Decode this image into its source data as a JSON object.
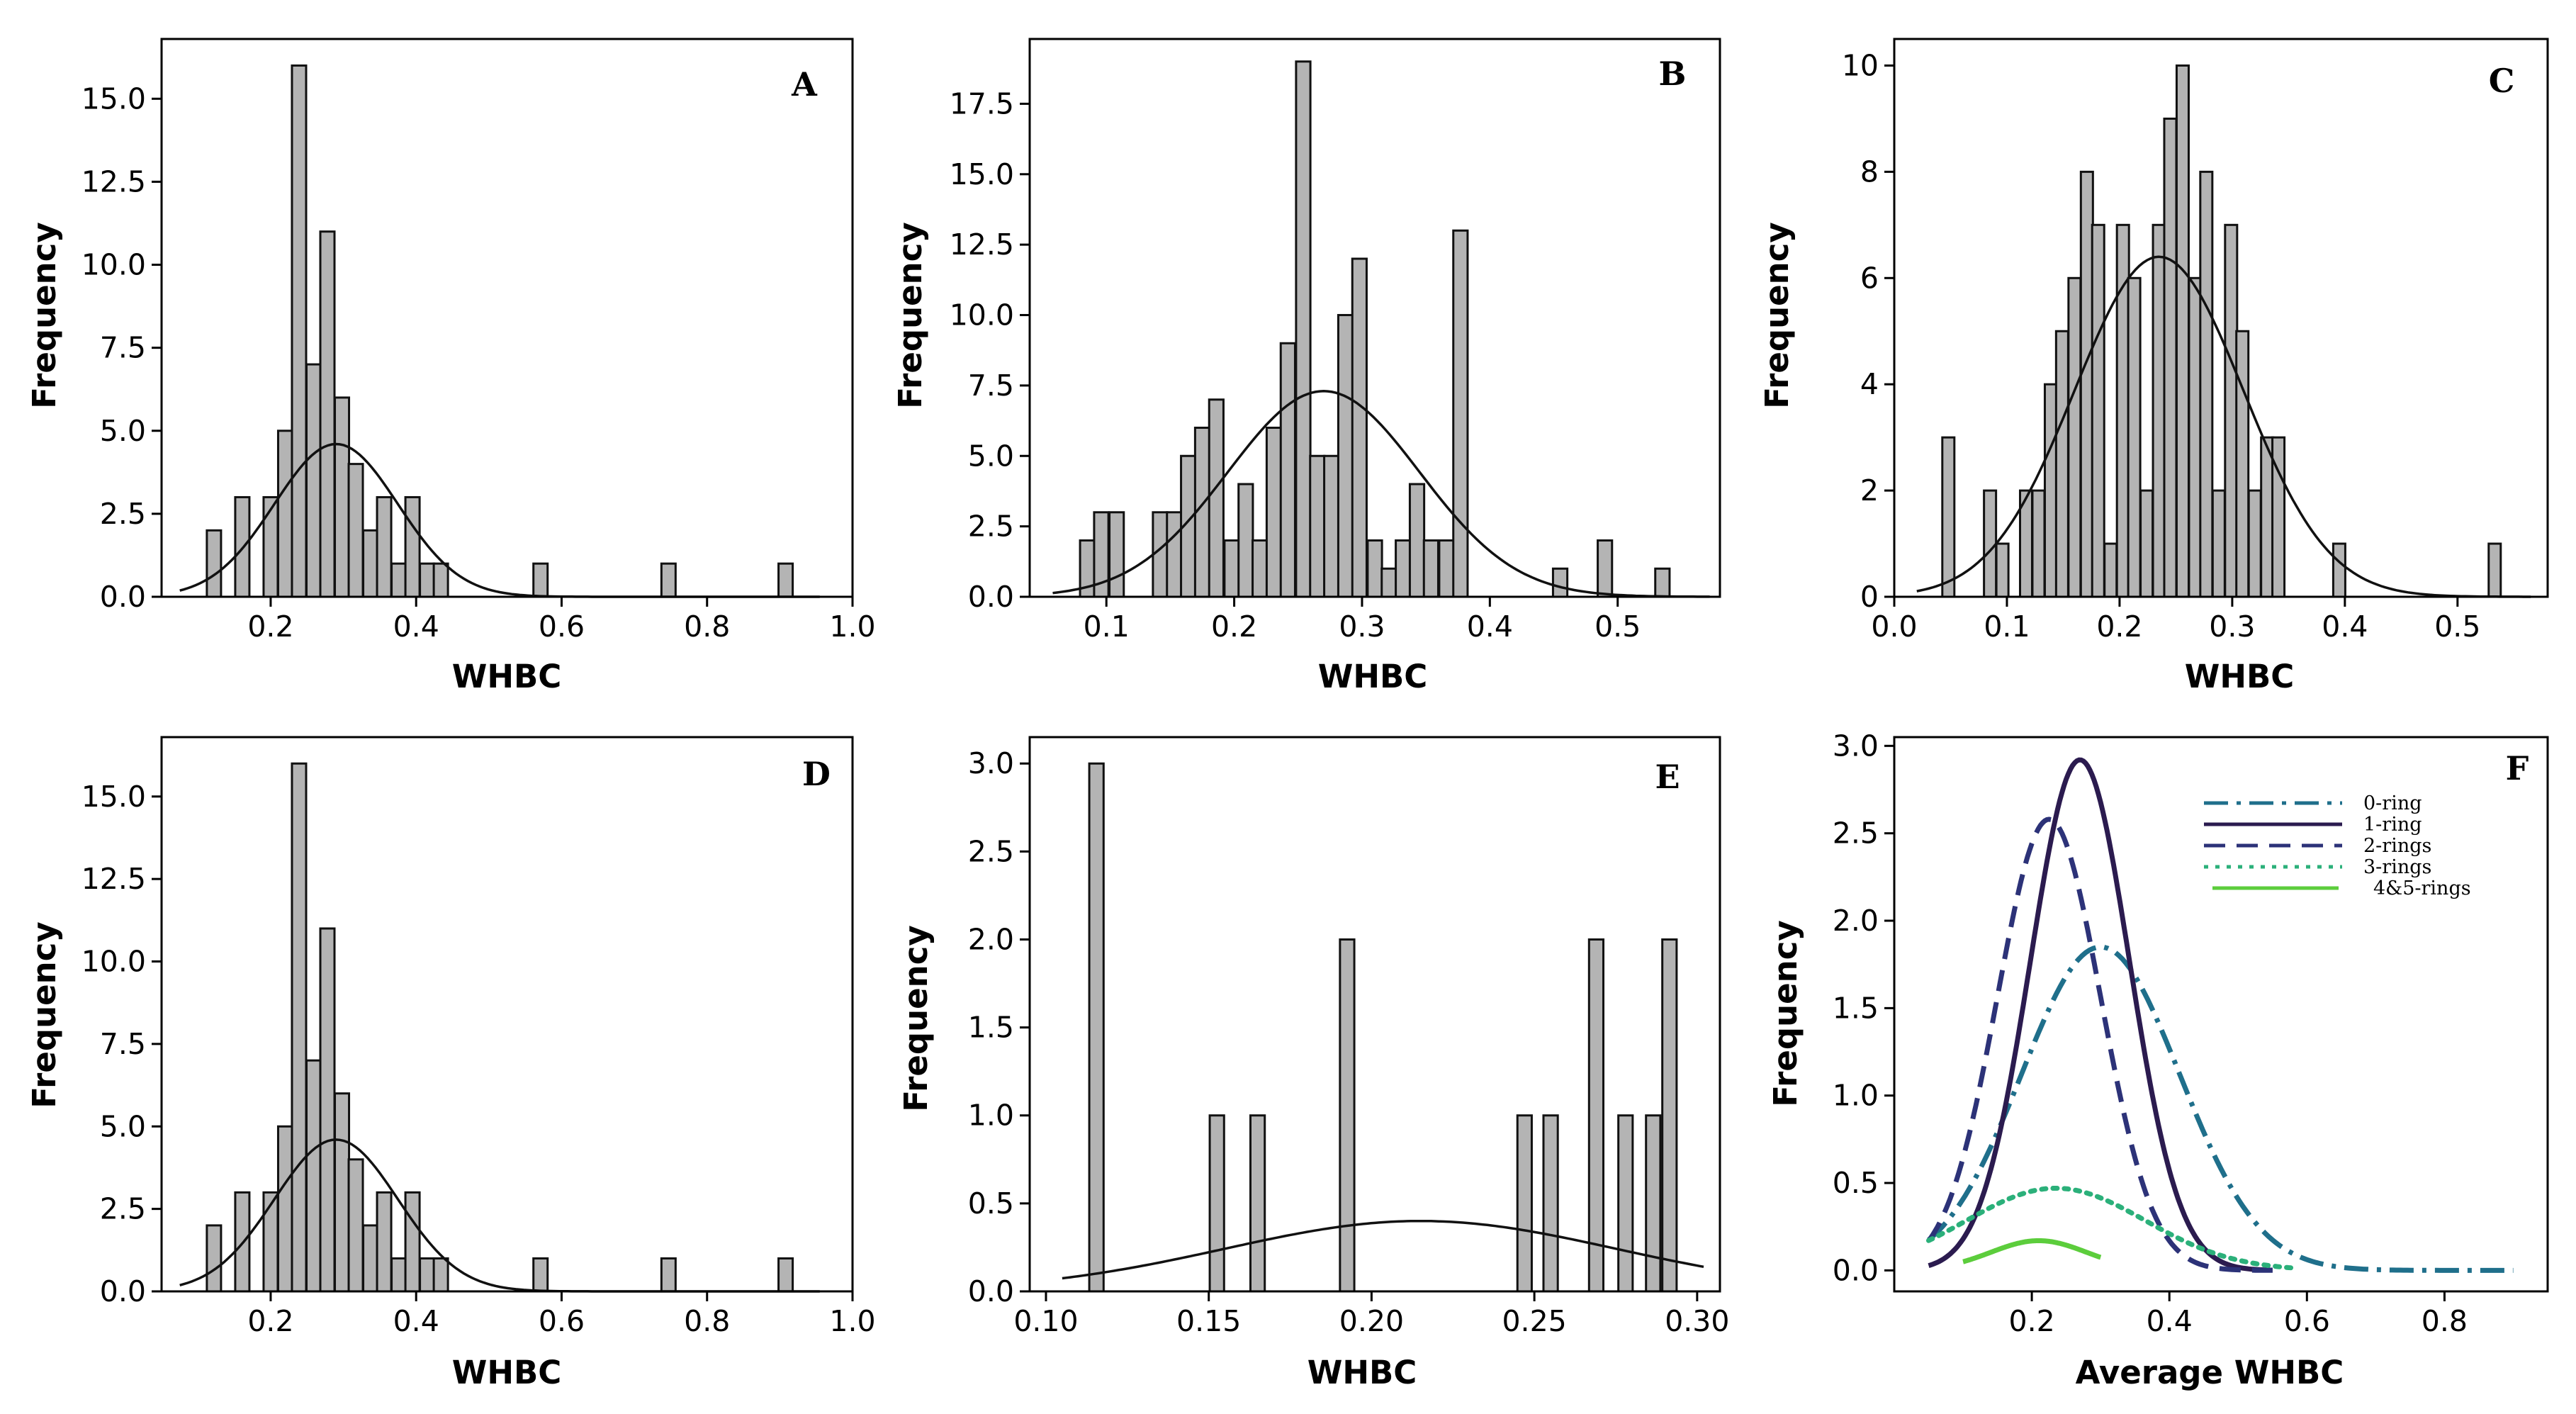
{
  "chart_data": [
    {
      "panel": "A",
      "type": "bar",
      "xlabel": "WHBC",
      "ylabel": "Frequency",
      "xlim": [
        0.05,
        1.0
      ],
      "ylim": [
        0,
        16.8
      ],
      "xticks": [
        0.2,
        0.4,
        0.6,
        0.8,
        1.0
      ],
      "xtick_labels": [
        "0.2",
        "0.4",
        "0.6",
        "0.8",
        "1.0"
      ],
      "yticks": [
        0.0,
        2.5,
        5.0,
        7.5,
        10.0,
        12.5,
        15.0
      ],
      "ytick_labels": [
        "0.0",
        "2.5",
        "5.0",
        "7.5",
        "10.0",
        "12.5",
        "15.0"
      ],
      "bin_width": 0.0195,
      "bars": [
        {
          "x": 0.122,
          "y": 2
        },
        {
          "x": 0.161,
          "y": 3
        },
        {
          "x": 0.2,
          "y": 3
        },
        {
          "x": 0.22,
          "y": 5
        },
        {
          "x": 0.239,
          "y": 16
        },
        {
          "x": 0.259,
          "y": 7
        },
        {
          "x": 0.278,
          "y": 11
        },
        {
          "x": 0.298,
          "y": 6
        },
        {
          "x": 0.317,
          "y": 4
        },
        {
          "x": 0.337,
          "y": 2
        },
        {
          "x": 0.356,
          "y": 3
        },
        {
          "x": 0.376,
          "y": 1
        },
        {
          "x": 0.395,
          "y": 3
        },
        {
          "x": 0.415,
          "y": 1
        },
        {
          "x": 0.434,
          "y": 1
        },
        {
          "x": 0.571,
          "y": 1
        },
        {
          "x": 0.747,
          "y": 1
        },
        {
          "x": 0.908,
          "y": 1
        }
      ],
      "fit": {
        "mu": 0.29,
        "sigma": 0.085,
        "peak": 4.6,
        "x_range": [
          0.075,
          0.955
        ]
      }
    },
    {
      "panel": "B",
      "type": "bar",
      "xlabel": "WHBC",
      "ylabel": "Frequency",
      "xlim": [
        0.04,
        0.58
      ],
      "ylim": [
        0,
        19.8
      ],
      "xticks": [
        0.1,
        0.2,
        0.3,
        0.4,
        0.5
      ],
      "xtick_labels": [
        "0.1",
        "0.2",
        "0.3",
        "0.4",
        "0.5"
      ],
      "yticks": [
        0.0,
        2.5,
        5.0,
        7.5,
        10.0,
        12.5,
        15.0,
        17.5
      ],
      "ytick_labels": [
        "0.0",
        "2.5",
        "5.0",
        "7.5",
        "10.0",
        "12.5",
        "15.0",
        "17.5"
      ],
      "bin_width": 0.0112,
      "bars": [
        {
          "x": 0.085,
          "y": 2
        },
        {
          "x": 0.096,
          "y": 3
        },
        {
          "x": 0.108,
          "y": 3
        },
        {
          "x": 0.142,
          "y": 3
        },
        {
          "x": 0.153,
          "y": 3
        },
        {
          "x": 0.164,
          "y": 5
        },
        {
          "x": 0.175,
          "y": 6
        },
        {
          "x": 0.186,
          "y": 7
        },
        {
          "x": 0.198,
          "y": 2
        },
        {
          "x": 0.209,
          "y": 4
        },
        {
          "x": 0.22,
          "y": 2
        },
        {
          "x": 0.231,
          "y": 6
        },
        {
          "x": 0.242,
          "y": 9
        },
        {
          "x": 0.254,
          "y": 19
        },
        {
          "x": 0.265,
          "y": 5
        },
        {
          "x": 0.276,
          "y": 5
        },
        {
          "x": 0.287,
          "y": 10
        },
        {
          "x": 0.298,
          "y": 12
        },
        {
          "x": 0.31,
          "y": 2
        },
        {
          "x": 0.321,
          "y": 1
        },
        {
          "x": 0.332,
          "y": 2
        },
        {
          "x": 0.343,
          "y": 4
        },
        {
          "x": 0.354,
          "y": 2
        },
        {
          "x": 0.366,
          "y": 2
        },
        {
          "x": 0.377,
          "y": 13
        },
        {
          "x": 0.455,
          "y": 1
        },
        {
          "x": 0.49,
          "y": 2
        },
        {
          "x": 0.535,
          "y": 1
        }
      ],
      "fit": {
        "mu": 0.27,
        "sigma": 0.075,
        "peak": 7.3,
        "x_range": [
          0.058,
          0.572
        ]
      }
    },
    {
      "panel": "C",
      "type": "bar",
      "xlabel": "WHBC",
      "ylabel": "Frequency",
      "xlim": [
        0.0,
        0.58
      ],
      "ylim": [
        0,
        10.5
      ],
      "xticks": [
        0.0,
        0.1,
        0.2,
        0.3,
        0.4,
        0.5
      ],
      "xtick_labels": [
        "0.0",
        "0.1",
        "0.2",
        "0.3",
        "0.4",
        "0.5"
      ],
      "yticks": [
        0,
        2,
        4,
        6,
        8,
        10
      ],
      "ytick_labels": [
        "0",
        "2",
        "4",
        "6",
        "8",
        "10"
      ],
      "bin_width": 0.0107,
      "bars": [
        {
          "x": 0.048,
          "y": 3
        },
        {
          "x": 0.085,
          "y": 2
        },
        {
          "x": 0.096,
          "y": 1
        },
        {
          "x": 0.117,
          "y": 2
        },
        {
          "x": 0.128,
          "y": 2
        },
        {
          "x": 0.139,
          "y": 4
        },
        {
          "x": 0.149,
          "y": 5
        },
        {
          "x": 0.16,
          "y": 6
        },
        {
          "x": 0.171,
          "y": 8
        },
        {
          "x": 0.181,
          "y": 7
        },
        {
          "x": 0.192,
          "y": 1
        },
        {
          "x": 0.203,
          "y": 7
        },
        {
          "x": 0.213,
          "y": 6
        },
        {
          "x": 0.224,
          "y": 2
        },
        {
          "x": 0.235,
          "y": 7
        },
        {
          "x": 0.245,
          "y": 9
        },
        {
          "x": 0.256,
          "y": 10
        },
        {
          "x": 0.267,
          "y": 6
        },
        {
          "x": 0.277,
          "y": 8
        },
        {
          "x": 0.288,
          "y": 2
        },
        {
          "x": 0.299,
          "y": 7
        },
        {
          "x": 0.309,
          "y": 5
        },
        {
          "x": 0.32,
          "y": 2
        },
        {
          "x": 0.331,
          "y": 3
        },
        {
          "x": 0.341,
          "y": 3
        },
        {
          "x": 0.395,
          "y": 1
        },
        {
          "x": 0.533,
          "y": 1
        }
      ],
      "fit": {
        "mu": 0.235,
        "sigma": 0.075,
        "peak": 6.4,
        "x_range": [
          0.02,
          0.565
        ]
      }
    },
    {
      "panel": "D",
      "type": "bar",
      "xlabel": "WHBC",
      "ylabel": "Frequency",
      "xlim": [
        0.05,
        1.0
      ],
      "ylim": [
        0,
        16.8
      ],
      "xticks": [
        0.2,
        0.4,
        0.6,
        0.8,
        1.0
      ],
      "xtick_labels": [
        "0.2",
        "0.4",
        "0.6",
        "0.8",
        "1.0"
      ],
      "yticks": [
        0.0,
        2.5,
        5.0,
        7.5,
        10.0,
        12.5,
        15.0
      ],
      "ytick_labels": [
        "0.0",
        "2.5",
        "5.0",
        "7.5",
        "10.0",
        "12.5",
        "15.0"
      ],
      "bin_width": 0.0195,
      "bars": [
        {
          "x": 0.122,
          "y": 2
        },
        {
          "x": 0.161,
          "y": 3
        },
        {
          "x": 0.2,
          "y": 3
        },
        {
          "x": 0.22,
          "y": 5
        },
        {
          "x": 0.239,
          "y": 16
        },
        {
          "x": 0.259,
          "y": 7
        },
        {
          "x": 0.278,
          "y": 11
        },
        {
          "x": 0.298,
          "y": 6
        },
        {
          "x": 0.317,
          "y": 4
        },
        {
          "x": 0.337,
          "y": 2
        },
        {
          "x": 0.356,
          "y": 3
        },
        {
          "x": 0.376,
          "y": 1
        },
        {
          "x": 0.395,
          "y": 3
        },
        {
          "x": 0.415,
          "y": 1
        },
        {
          "x": 0.434,
          "y": 1
        },
        {
          "x": 0.571,
          "y": 1
        },
        {
          "x": 0.747,
          "y": 1
        },
        {
          "x": 0.908,
          "y": 1
        }
      ],
      "fit": {
        "mu": 0.29,
        "sigma": 0.085,
        "peak": 4.6,
        "x_range": [
          0.075,
          0.955
        ]
      }
    },
    {
      "panel": "E",
      "type": "bar",
      "xlabel": "WHBC",
      "ylabel": "Frequency",
      "xlim": [
        0.095,
        0.307
      ],
      "ylim": [
        0,
        3.15
      ],
      "xticks": [
        0.1,
        0.15,
        0.2,
        0.25,
        0.3
      ],
      "xtick_labels": [
        "0.10",
        "0.15",
        "0.20",
        "0.25",
        "0.30"
      ],
      "yticks": [
        0.0,
        0.5,
        1.0,
        1.5,
        2.0,
        2.5,
        3.0
      ],
      "ytick_labels": [
        "0.0",
        "0.5",
        "1.0",
        "1.5",
        "2.0",
        "2.5",
        "3.0"
      ],
      "bin_width": 0.0044,
      "bars": [
        {
          "x": 0.1155,
          "y": 3
        },
        {
          "x": 0.1525,
          "y": 1
        },
        {
          "x": 0.165,
          "y": 1
        },
        {
          "x": 0.1925,
          "y": 2
        },
        {
          "x": 0.247,
          "y": 1
        },
        {
          "x": 0.255,
          "y": 1
        },
        {
          "x": 0.269,
          "y": 2
        },
        {
          "x": 0.278,
          "y": 1
        },
        {
          "x": 0.2865,
          "y": 1
        },
        {
          "x": 0.2915,
          "y": 2
        }
      ],
      "fit": {
        "mu": 0.215,
        "sigma": 0.06,
        "peak": 0.4,
        "x_range": [
          0.105,
          0.302
        ]
      }
    },
    {
      "panel": "F",
      "type": "line",
      "xlabel": "Average WHBC",
      "ylabel": "Frequency",
      "xlim": [
        0.0,
        0.95
      ],
      "ylim": [
        -0.12,
        3.05
      ],
      "xticks": [
        0.2,
        0.4,
        0.6,
        0.8
      ],
      "xtick_labels": [
        "0.2",
        "0.4",
        "0.6",
        "0.8"
      ],
      "yticks": [
        0.0,
        0.5,
        1.0,
        1.5,
        2.0,
        2.5,
        3.0
      ],
      "ytick_labels": [
        "0.0",
        "0.5",
        "1.0",
        "1.5",
        "2.0",
        "2.5",
        "3.0"
      ],
      "series": [
        {
          "name": "0-ring",
          "color": "#1f6f8b",
          "dash": "dashdot",
          "mu": 0.3,
          "sigma": 0.115,
          "peak": 1.85,
          "x_range": [
            0.05,
            0.9
          ]
        },
        {
          "name": "1-ring",
          "color": "#2b1b4f",
          "dash": "solid",
          "mu": 0.27,
          "sigma": 0.072,
          "peak": 2.92,
          "x_range": [
            0.05,
            0.55
          ]
        },
        {
          "name": "2-rings",
          "color": "#2c3278",
          "dash": "dashed",
          "mu": 0.225,
          "sigma": 0.075,
          "peak": 2.58,
          "x_range": [
            0.05,
            0.55
          ]
        },
        {
          "name": "3-rings",
          "color": "#2bb07a",
          "dash": "dotted",
          "mu": 0.235,
          "sigma": 0.13,
          "peak": 0.47,
          "x_range": [
            0.05,
            0.58
          ]
        },
        {
          "name": "4&5-rings",
          "color": "#5ccd3c",
          "dash": "solid",
          "mu": 0.21,
          "sigma": 0.07,
          "peak": 0.17,
          "x_range": [
            0.1,
            0.3
          ]
        }
      ]
    }
  ]
}
